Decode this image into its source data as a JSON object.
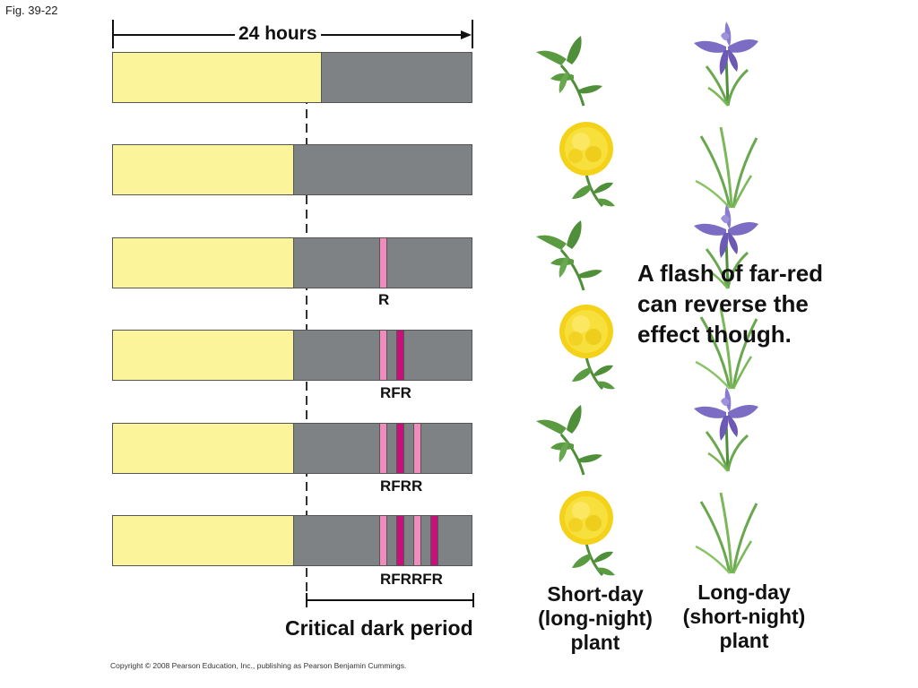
{
  "figure_label": "Fig. 39-22",
  "hours_label": "24 hours",
  "critical_label": "Critical dark period",
  "note": [
    "A flash of far-red",
    "can reverse the",
    "effect though."
  ],
  "short_day_label": [
    "Short-day",
    "(long-night)",
    "plant"
  ],
  "long_day_label": [
    "Long-day",
    "(short-night)",
    "plant"
  ],
  "copyright": "Copyright © 2008 Pearson Education, Inc., publishing as Pearson Benjamin Cummings.",
  "rows": [
    {
      "sequence_label": "",
      "short_day_plant": "vegetative",
      "long_day_plant": "flowering"
    },
    {
      "sequence_label": "",
      "short_day_plant": "flowering",
      "long_day_plant": "vegetative"
    },
    {
      "sequence_label": "R",
      "short_day_plant": "vegetative",
      "long_day_plant": "flowering"
    },
    {
      "sequence_label": "RFR",
      "short_day_plant": "flowering",
      "long_day_plant": "vegetative"
    },
    {
      "sequence_label": "RFRR",
      "short_day_plant": "vegetative",
      "long_day_plant": "flowering"
    },
    {
      "sequence_label": "RFRRFR",
      "short_day_plant": "flowering",
      "long_day_plant": "vegetative"
    }
  ],
  "colors": {
    "light_period": "#fbf49b",
    "dark_period": "#7f8285",
    "red_flash": "#ef8cbc",
    "far_red_flash": "#c8107a",
    "short_day_flower": "#f4d21a",
    "long_day_flower": "#7d6cc4",
    "leaf": "#4f8f3a"
  },
  "icons": {
    "short_day_flowering": "yellow-flower-icon",
    "short_day_vegetative": "leafy-stem-icon",
    "long_day_flowering": "iris-flower-icon",
    "long_day_vegetative": "grass-leaves-icon"
  }
}
